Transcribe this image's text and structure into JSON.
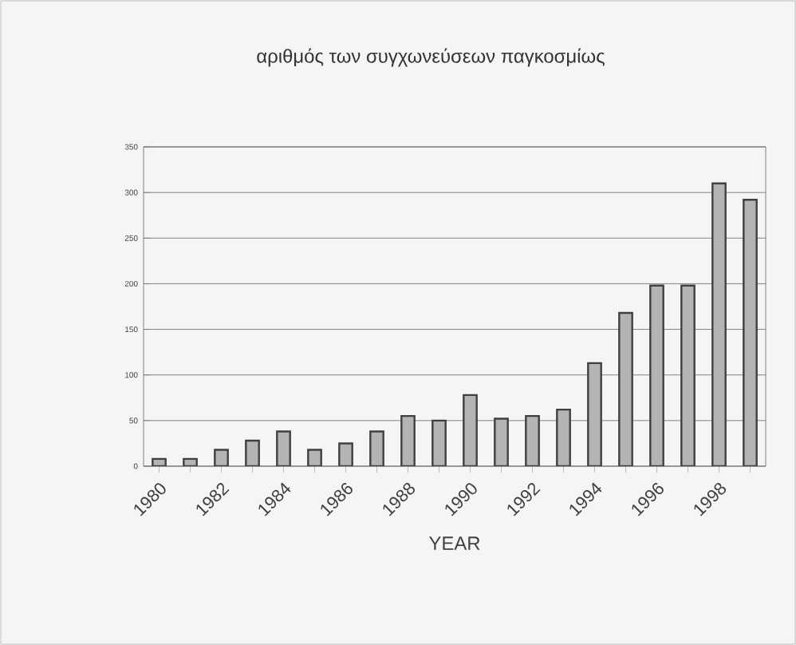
{
  "chart_data": {
    "type": "bar",
    "title": "αριθμός των συγχωνεύσεων παγκοσμίως",
    "xlabel": "YEAR",
    "categories": [
      "1980",
      null,
      "1982",
      null,
      "1984",
      null,
      "1986",
      null,
      "1988",
      null,
      "1990",
      null,
      "1992",
      null,
      "1994",
      null,
      "1996",
      null,
      "1998",
      null
    ],
    "values": [
      8,
      8,
      18,
      28,
      38,
      18,
      25,
      38,
      55,
      50,
      78,
      52,
      55,
      62,
      113,
      168,
      198,
      198,
      310,
      292
    ],
    "color": "#b4b4b4",
    "ylim": [
      0,
      350
    ],
    "yticks": [
      0,
      50,
      100,
      150,
      200,
      250,
      300,
      350
    ],
    "grid": "y"
  }
}
